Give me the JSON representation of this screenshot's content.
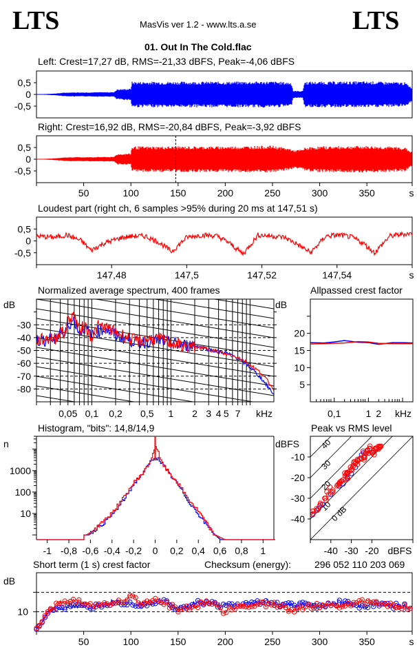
{
  "header": {
    "logo_left": "LTS",
    "logo_right": "LTS",
    "app_title": "MasVis ver 1.2 - www.lts.a.se",
    "file_title": "01. Out In The Cold.flac"
  },
  "colors": {
    "left": "#0000ff",
    "right": "#ff0000",
    "axis": "#000000",
    "background": "#ffffff"
  },
  "chart_data": [
    {
      "id": "left_waveform",
      "type": "area",
      "title": "Left: Crest=17,27 dB, RMS=-21,33 dBFS, Peak=-4,06 dBFS",
      "series": [
        {
          "name": "Left",
          "color": "#0000ff",
          "envelope_x": [
            0,
            10,
            20,
            30,
            40,
            55,
            70,
            82,
            85,
            100,
            101,
            150,
            200,
            250,
            270,
            272,
            282,
            284,
            300,
            350,
            390,
            398
          ],
          "envelope_amp": [
            0.0,
            0.02,
            0.04,
            0.08,
            0.09,
            0.09,
            0.1,
            0.1,
            0.22,
            0.25,
            0.55,
            0.55,
            0.55,
            0.56,
            0.52,
            0.15,
            0.15,
            0.55,
            0.55,
            0.56,
            0.52,
            0.3
          ]
        }
      ],
      "yticks": [
        "0,5",
        "0",
        "-0,5"
      ],
      "ylim": [
        -1,
        1
      ],
      "xlim": [
        0,
        398
      ]
    },
    {
      "id": "right_waveform",
      "type": "area",
      "title": "Right: Crest=16,92 dB, RMS=-20,84 dBFS, Peak=-3,92 dBFS",
      "series": [
        {
          "name": "Right",
          "color": "#ff0000",
          "envelope_x": [
            0,
            10,
            20,
            30,
            40,
            55,
            70,
            82,
            85,
            100,
            101,
            150,
            200,
            250,
            270,
            272,
            282,
            284,
            300,
            350,
            390,
            398
          ],
          "envelope_amp": [
            0.0,
            0.02,
            0.04,
            0.08,
            0.09,
            0.09,
            0.1,
            0.1,
            0.22,
            0.25,
            0.55,
            0.55,
            0.55,
            0.58,
            0.45,
            0.38,
            0.42,
            0.5,
            0.55,
            0.57,
            0.52,
            0.3
          ]
        }
      ],
      "marker_x": 147.51,
      "yticks": [
        "0,5",
        "0",
        "-0,5"
      ],
      "ylim": [
        -1,
        1
      ],
      "xticks": [
        "50",
        "100",
        "150",
        "200",
        "250",
        "300",
        "350"
      ],
      "xtick_values": [
        50,
        100,
        150,
        200,
        250,
        300,
        350
      ],
      "xunit": "s",
      "xlim": [
        0,
        398
      ]
    },
    {
      "id": "loudest_part",
      "type": "line",
      "title": "Loudest part (right ch, 6 samples >95% during 20 ms at 147,51 s)",
      "series": [
        {
          "name": "Right",
          "color": "#ff0000",
          "x": [
            147.46,
            147.465,
            147.468,
            147.472,
            147.4745,
            147.478,
            147.483,
            147.486,
            147.489,
            147.4925,
            147.496,
            147.5,
            147.504,
            147.508,
            147.511,
            147.515,
            147.519,
            147.523,
            147.526,
            147.529,
            147.533,
            147.537,
            147.541,
            147.544,
            147.547,
            147.55,
            147.554,
            147.5585
          ],
          "y": [
            0.2,
            0.15,
            0.25,
            0.0,
            -0.4,
            -0.1,
            0.15,
            0.2,
            0.2,
            -0.05,
            -0.45,
            0.15,
            0.25,
            0.2,
            -0.05,
            -0.55,
            0.25,
            0.2,
            0.15,
            -0.1,
            -0.5,
            0.2,
            0.25,
            0.15,
            -0.1,
            -0.5,
            0.2,
            0.3
          ]
        }
      ],
      "yticks": [
        "0,5",
        "0",
        "-0,5"
      ],
      "ylim": [
        -1,
        1
      ],
      "xticks": [
        "147,48",
        "147,5",
        "147,52",
        "147,54"
      ],
      "xtick_values": [
        147.48,
        147.5,
        147.52,
        147.54
      ],
      "xunit": "s",
      "xlim": [
        147.46,
        147.56
      ]
    },
    {
      "id": "spectrum",
      "type": "line",
      "title": "Normalized average spectrum, 400 frames",
      "ylabel": "dB",
      "yticks": [
        "-30",
        "-40",
        "-50",
        "-60",
        "-70",
        "-80"
      ],
      "ytick_values": [
        -30,
        -40,
        -50,
        -60,
        -70,
        -80
      ],
      "ylim": [
        -90,
        -10
      ],
      "xticks": [
        "0,05",
        "0,1",
        "0,2",
        "0,5",
        "1",
        "2",
        "3",
        "4",
        "5",
        "7",
        "kHz"
      ],
      "xtick_values": [
        0.05,
        0.1,
        0.2,
        0.5,
        1,
        2,
        3,
        4,
        5,
        7
      ],
      "xlim_khz": [
        0.02,
        20
      ],
      "xscale": "log",
      "series": [
        {
          "name": "Left",
          "color": "#0000ff",
          "x": [
            0.02,
            0.025,
            0.03,
            0.035,
            0.04,
            0.045,
            0.05,
            0.06,
            0.07,
            0.08,
            0.1,
            0.12,
            0.15,
            0.2,
            0.25,
            0.3,
            0.4,
            0.5,
            0.7,
            1,
            1.5,
            2,
            3,
            4,
            5,
            7,
            10,
            14,
            20
          ],
          "y": [
            -42,
            -42,
            -41,
            -43,
            -33,
            -40,
            -30,
            -26,
            -36,
            -32,
            -38,
            -35,
            -33,
            -38,
            -40,
            -42,
            -44,
            -43,
            -42,
            -44,
            -46,
            -46,
            -49,
            -51,
            -52,
            -56,
            -63,
            -72,
            -84
          ]
        },
        {
          "name": "Right",
          "color": "#ff0000",
          "x": [
            0.02,
            0.025,
            0.03,
            0.035,
            0.04,
            0.045,
            0.05,
            0.06,
            0.07,
            0.08,
            0.1,
            0.12,
            0.15,
            0.2,
            0.25,
            0.3,
            0.4,
            0.5,
            0.7,
            1,
            1.5,
            2,
            3,
            4,
            5,
            7,
            10,
            14,
            20
          ],
          "y": [
            -43,
            -41,
            -40,
            -41,
            -34,
            -38,
            -26,
            -22,
            -35,
            -30,
            -40,
            -31,
            -32,
            -36,
            -38,
            -41,
            -43,
            -41,
            -41,
            -44,
            -47,
            -47,
            -49,
            -51,
            -53,
            -55,
            -61,
            -68,
            -80
          ]
        }
      ]
    },
    {
      "id": "allpassed_crest",
      "type": "line",
      "title": "Allpassed crest factor",
      "ylabel": "dB",
      "yticks": [
        "20",
        "15",
        "10",
        "5"
      ],
      "ytick_values": [
        20,
        15,
        10,
        5
      ],
      "ylim": [
        0,
        30
      ],
      "xticks": [
        "0,1",
        "1",
        "2",
        "kHz"
      ],
      "xtick_values": [
        0.1,
        1,
        2
      ],
      "xlim_khz": [
        0.02,
        20
      ],
      "xscale": "log",
      "series": [
        {
          "name": "Left",
          "color": "#0000ff",
          "x": [
            0.02,
            0.05,
            0.1,
            0.2,
            0.5,
            1,
            2,
            5,
            10,
            20
          ],
          "y": [
            17.3,
            17.2,
            17.5,
            17.9,
            17.4,
            17.3,
            16.8,
            17.3,
            17.3,
            17.2
          ]
        },
        {
          "name": "Right",
          "color": "#ff0000",
          "x": [
            0.02,
            0.05,
            0.1,
            0.2,
            0.5,
            1,
            2,
            5,
            10,
            20
          ],
          "y": [
            16.9,
            17.0,
            17.1,
            17.2,
            17.6,
            17.5,
            17.1,
            17.0,
            17.0,
            17.0
          ]
        }
      ]
    },
    {
      "id": "histogram",
      "type": "line",
      "title": "Histogram, \"bits\": 14,8/14,9",
      "ylabel": "n",
      "yscale": "log",
      "yticks": [
        "1000",
        "100",
        "10"
      ],
      "ytick_values": [
        1000,
        100,
        10
      ],
      "ylim": [
        0.6,
        40000
      ],
      "xticks": [
        "-1",
        "-0,8",
        "-0,6",
        "-0,4",
        "-0,2",
        "0",
        "0,2",
        "0,4",
        "0,6",
        "0,8",
        "1"
      ],
      "xtick_values": [
        -1,
        -0.8,
        -0.6,
        -0.4,
        -0.2,
        0,
        0.2,
        0.4,
        0.6,
        0.8,
        1
      ],
      "xlim": [
        -1.1,
        1.1
      ],
      "series": [
        {
          "name": "Left",
          "color": "#0000ff",
          "x": [
            -0.62,
            -0.55,
            -0.5,
            -0.45,
            -0.4,
            -0.3,
            -0.2,
            -0.1,
            -0.05,
            0,
            0.05,
            0.1,
            0.2,
            0.3,
            0.4,
            0.45,
            0.5,
            0.55,
            0.6
          ],
          "y": [
            1,
            2,
            3,
            5,
            9,
            40,
            250,
            1000,
            2500,
            4500,
            2500,
            1000,
            250,
            40,
            9,
            4,
            2,
            1,
            0.6
          ]
        },
        {
          "name": "Right",
          "color": "#ff0000",
          "x": [
            -0.64,
            -0.55,
            -0.5,
            -0.45,
            -0.4,
            -0.3,
            -0.2,
            -0.1,
            -0.05,
            0,
            0.05,
            0.1,
            0.2,
            0.3,
            0.4,
            0.45,
            0.5,
            0.55,
            0.64
          ],
          "y": [
            1,
            2,
            4,
            6,
            12,
            50,
            280,
            1000,
            2700,
            15000,
            2700,
            1100,
            280,
            50,
            12,
            5,
            2,
            1,
            0.6
          ]
        }
      ]
    },
    {
      "id": "peak_vs_rms",
      "type": "scatter",
      "title": "Peak vs RMS level",
      "ylabel": "dBFS",
      "xlabel": "dBFS",
      "yticks": [
        "-10",
        "-20",
        "-30",
        "-40"
      ],
      "ytick_values": [
        -10,
        -20,
        -30,
        -40
      ],
      "ylim": [
        -50,
        0
      ],
      "xticks": [
        "-40",
        "-30",
        "-20",
        "dBFS"
      ],
      "xtick_values": [
        -40,
        -30,
        -20
      ],
      "xlim": [
        -50,
        0
      ],
      "crest_lines": [
        "40",
        "30",
        "20",
        "10",
        "0 dB"
      ],
      "crest_line_values": [
        40,
        30,
        20,
        10,
        0
      ],
      "series": [
        {
          "name": "Left",
          "color": "#0000ff",
          "x": [
            -49,
            -46,
            -44,
            -40,
            -36,
            -34,
            -32,
            -30,
            -28,
            -27,
            -25,
            -24,
            -22,
            -21,
            -20,
            -19,
            -18
          ],
          "y": [
            -38,
            -35,
            -33,
            -28,
            -24,
            -23,
            -20,
            -18,
            -15,
            -12,
            -9,
            -8,
            -7,
            -6,
            -8,
            -7,
            -6
          ]
        },
        {
          "name": "Right",
          "color": "#ff0000",
          "x": [
            -50,
            -47,
            -45,
            -43,
            -41,
            -39,
            -37,
            -35,
            -34,
            -33,
            -32,
            -31,
            -30,
            -29,
            -28,
            -27,
            -26,
            -25,
            -24,
            -23,
            -22,
            -21,
            -20,
            -19,
            -18,
            -17,
            -16
          ],
          "y": [
            -37,
            -35,
            -33,
            -30,
            -28,
            -26,
            -24,
            -22,
            -21,
            -19,
            -18,
            -17,
            -16,
            -14,
            -13,
            -12,
            -11,
            -11,
            -10,
            -8,
            -7,
            -6,
            -8,
            -7,
            -6,
            -5,
            -5
          ]
        }
      ]
    },
    {
      "id": "short_term_crest",
      "type": "scatter",
      "title": "Short term (1 s) crest factor",
      "ylabel": "dB",
      "yticks": [
        "10"
      ],
      "ytick_values": [
        10
      ],
      "ylim": [
        5,
        20
      ],
      "dashed_lines": [
        10,
        15
      ],
      "xticks": [
        "50",
        "100",
        "150",
        "200",
        "250",
        "300",
        "350"
      ],
      "xtick_values": [
        50,
        100,
        150,
        200,
        250,
        300,
        350
      ],
      "xunit": "s",
      "xlim": [
        0,
        398
      ],
      "series": [
        {
          "name": "Left",
          "color": "#0000ff",
          "x": [
            0,
            5,
            10,
            15,
            20,
            40,
            60,
            85,
            100,
            120,
            133,
            150,
            175,
            200,
            225,
            245,
            260,
            280,
            300,
            323,
            340,
            360,
            380,
            398
          ],
          "y": [
            5.5,
            6.8,
            9,
            10.5,
            11,
            11.2,
            11.3,
            12.8,
            12,
            12.2,
            13,
            11,
            12.5,
            11.5,
            12,
            12.8,
            11.5,
            12,
            11.5,
            12.5,
            11.5,
            11.8,
            11.5,
            11.2
          ]
        },
        {
          "name": "Right",
          "color": "#ff0000",
          "x": [
            0,
            5,
            10,
            15,
            20,
            27,
            45,
            60,
            90,
            100,
            110,
            125,
            133,
            150,
            160,
            185,
            197,
            215,
            240,
            260,
            270,
            290,
            320,
            350,
            380,
            398
          ],
          "y": [
            5.8,
            7,
            9.5,
            10.8,
            11.5,
            12.5,
            12.5,
            11.8,
            12.5,
            14.5,
            12,
            12.8,
            12.5,
            10.5,
            11,
            12.5,
            10,
            11.5,
            12,
            11.5,
            10.5,
            11.5,
            11.5,
            12.8,
            11.5,
            11
          ]
        }
      ],
      "checksum_label": "Checksum (energy):",
      "checksum_value": "296 052 110 203 069"
    }
  ]
}
